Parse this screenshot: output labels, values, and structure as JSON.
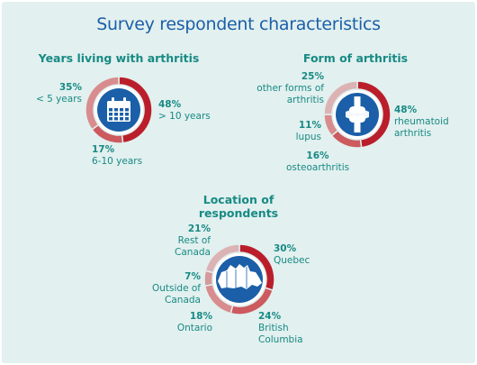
{
  "title": "Survey respondent characteristics",
  "colors": {
    "background": "#e2f0ef",
    "title": "#1b5fa8",
    "text": "#178a84",
    "red_dark": "#bb1e2b",
    "red_mid": "#cc5a5e",
    "red_light": "#d88c8e",
    "red_pale": "#dcb3b5",
    "icon_fill": "#1b5fa8"
  },
  "chart_data": [
    {
      "type": "pie",
      "donut": true,
      "title": "Years living with arthritis",
      "icon": "calendar-icon",
      "slices": [
        {
          "label": "> 10 years",
          "value": 48,
          "pct_label": "48%",
          "color": "#bb1e2b"
        },
        {
          "label": "6-10 years",
          "value": 17,
          "pct_label": "17%",
          "color": "#cc5a5e"
        },
        {
          "label": "< 5 years",
          "value": 35,
          "pct_label": "35%",
          "color": "#d88c8e"
        }
      ]
    },
    {
      "type": "pie",
      "donut": true,
      "title": "Form of arthritis",
      "icon": "joint-icon",
      "slices": [
        {
          "label": "rheumatoid arthritis",
          "value": 48,
          "pct_label": "48%",
          "color": "#bb1e2b"
        },
        {
          "label": "osteoarthritis",
          "value": 16,
          "pct_label": "16%",
          "color": "#cc5a5e"
        },
        {
          "label": "lupus",
          "value": 11,
          "pct_label": "11%",
          "color": "#d88c8e"
        },
        {
          "label": "other forms of arthritis",
          "value": 25,
          "pct_label": "25%",
          "color": "#dcb3b5"
        }
      ]
    },
    {
      "type": "pie",
      "donut": true,
      "title": "Location of respondents",
      "icon": "canada-map-icon",
      "slices": [
        {
          "label": "Quebec",
          "value": 30,
          "pct_label": "30%",
          "color": "#bb1e2b"
        },
        {
          "label": "British Columbia",
          "value": 24,
          "pct_label": "24%",
          "color": "#cc5a5e"
        },
        {
          "label": "Ontario",
          "value": 18,
          "pct_label": "18%",
          "color": "#d88c8e"
        },
        {
          "label": "Outside of Canada",
          "value": 7,
          "pct_label": "7%",
          "color": "#d49a9c"
        },
        {
          "label": "Rest of Canada",
          "value": 21,
          "pct_label": "21%",
          "color": "#dcb3b5"
        }
      ]
    }
  ]
}
